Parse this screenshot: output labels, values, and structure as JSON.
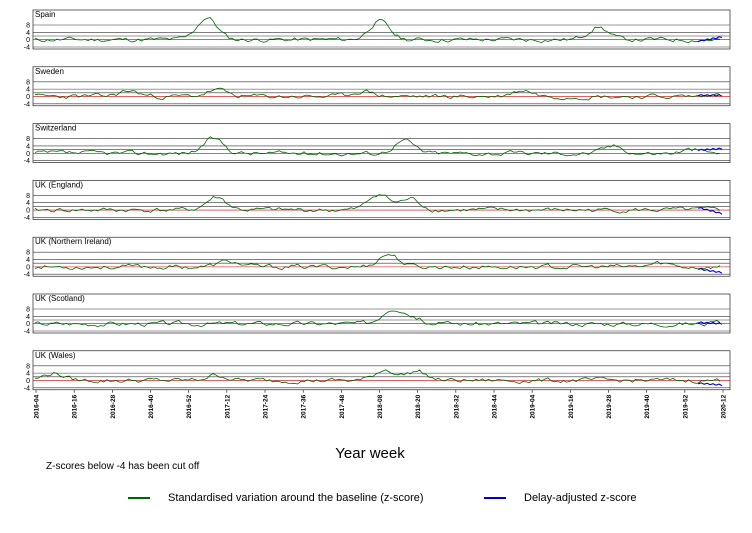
{
  "chart_data": {
    "type": "line",
    "xlabel": "Year week",
    "note": "Z-scores below -4 has been cut off",
    "y_ticks": [
      "8",
      "4",
      "0",
      "-4"
    ],
    "x_ticks": [
      "2016-04",
      "2016-16",
      "2016-28",
      "2016-40",
      "2016-52",
      "2017-12",
      "2017-24",
      "2017-36",
      "2017-48",
      "2018-08",
      "2018-20",
      "2018-32",
      "2018-44",
      "2019-04",
      "2019-16",
      "2019-28",
      "2019-40",
      "2019-52",
      "2020-12"
    ],
    "ylim": [
      -4,
      14
    ],
    "reference_lines": [
      -4,
      0,
      2,
      4,
      8
    ],
    "legend": [
      {
        "label": "Standardised variation around the baseline (z-score)",
        "color": "#006400"
      },
      {
        "label": "Delay-adjusted z-score",
        "color": "#0000cc"
      }
    ],
    "colors": {
      "zscore": "#006400",
      "delay": "#0000cc",
      "zero_line": "#cc0000",
      "grid": "#333333"
    },
    "panels": [
      {
        "name": "Spain",
        "seed": 11,
        "peaks": [
          [
            55,
            12
          ],
          [
            110,
            10
          ],
          [
            180,
            7
          ],
          [
            242,
            6
          ]
        ],
        "delay_end": 1.5
      },
      {
        "name": "Sweden",
        "seed": 23,
        "peaks": [
          [
            30,
            3
          ],
          [
            58,
            3.5
          ],
          [
            105,
            3
          ],
          [
            156,
            3.5
          ],
          [
            222,
            2.5
          ]
        ],
        "delay_end": 0.5
      },
      {
        "name": "Switzerland",
        "seed": 37,
        "peaks": [
          [
            57,
            8
          ],
          [
            118,
            7
          ],
          [
            185,
            4
          ],
          [
            210,
            2
          ]
        ],
        "delay_end": 2.5
      },
      {
        "name": "UK (England)",
        "seed": 41,
        "peaks": [
          [
            58,
            7
          ],
          [
            110,
            9
          ],
          [
            120,
            6
          ],
          [
            245,
            3
          ]
        ],
        "delay_end": -2.0
      },
      {
        "name": "UK (Northern Ireland)",
        "seed": 53,
        "peaks": [
          [
            62,
            3
          ],
          [
            113,
            7
          ],
          [
            200,
            2
          ],
          [
            245,
            2
          ]
        ],
        "delay_end": -3.2
      },
      {
        "name": "UK (Scotland)",
        "seed": 67,
        "peaks": [
          [
            114,
            8
          ],
          [
            120,
            4
          ],
          [
            238,
            1.5
          ]
        ],
        "delay_end": 0.0
      },
      {
        "name": "UK (Wales)",
        "seed": 79,
        "peaks": [
          [
            6,
            4
          ],
          [
            58,
            3
          ],
          [
            112,
            6
          ],
          [
            122,
            5
          ],
          [
            245,
            2
          ]
        ],
        "delay_end": -2.5
      }
    ]
  }
}
